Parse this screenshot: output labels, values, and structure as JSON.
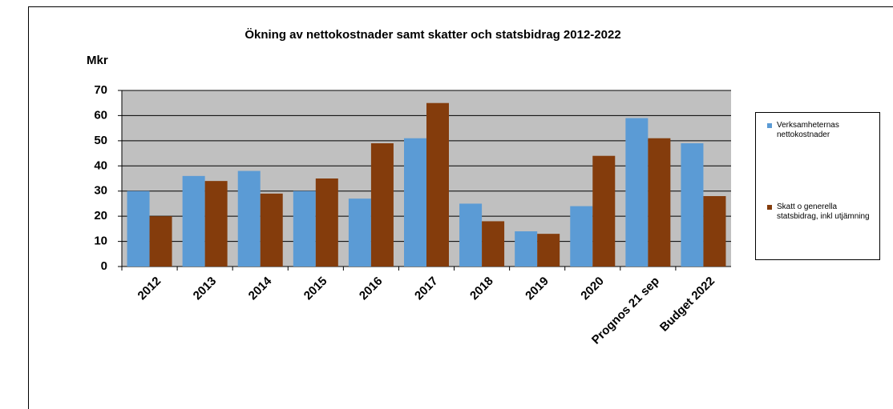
{
  "chart_data": {
    "type": "bar",
    "title": "Ökning av nettokostnader samt skatter och statsbidrag 2012-2022",
    "y_label": "Mkr",
    "categories": [
      "2012",
      "2013",
      "2014",
      "2015",
      "2016",
      "2017",
      "2018",
      "2019",
      "2020",
      "Prognos 21 sep",
      "Budget 2022"
    ],
    "series": [
      {
        "name": "Verksamheternas nettokostnader",
        "color": "#5b9bd5",
        "values": [
          30,
          36,
          38,
          30,
          27,
          51,
          25,
          14,
          24,
          59,
          49
        ]
      },
      {
        "name": "Skatt o generella statsbidrag, inkl utjämning",
        "color": "#843c0c",
        "values": [
          20,
          34,
          29,
          35,
          49,
          65,
          18,
          13,
          44,
          51,
          28
        ]
      }
    ],
    "ylim": [
      0,
      70
    ],
    "yticks": [
      0,
      10,
      20,
      30,
      40,
      50,
      60,
      70
    ],
    "grid": true,
    "legend": "right"
  }
}
